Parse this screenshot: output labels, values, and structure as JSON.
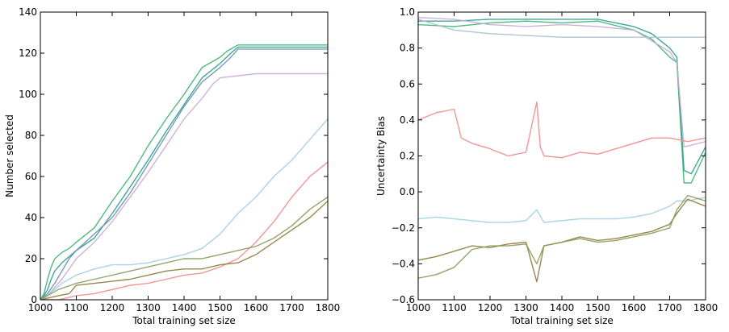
{
  "chart_data": [
    {
      "type": "line",
      "xlabel": "Total training set size",
      "ylabel": "Number selected",
      "xlim": [
        1000,
        1800
      ],
      "ylim": [
        0,
        140
      ],
      "xticks": [
        1000,
        1100,
        1200,
        1300,
        1400,
        1500,
        1600,
        1700,
        1800
      ],
      "yticks": [
        0,
        20,
        40,
        60,
        80,
        100,
        120,
        140
      ],
      "grid": false,
      "series": [
        {
          "color": "#3cb26e",
          "x": [
            1000,
            1010,
            1020,
            1030,
            1040,
            1060,
            1080,
            1100,
            1150,
            1200,
            1250,
            1300,
            1350,
            1400,
            1450,
            1500,
            1520,
            1540,
            1550,
            1600,
            1700,
            1800
          ],
          "y": [
            0,
            3,
            10,
            16,
            20,
            23,
            25,
            28,
            35,
            48,
            60,
            75,
            88,
            100,
            113,
            118,
            121,
            123,
            124,
            124,
            124,
            124
          ]
        },
        {
          "color": "#2a9d8f",
          "x": [
            1000,
            1010,
            1020,
            1030,
            1040,
            1060,
            1080,
            1100,
            1150,
            1200,
            1250,
            1300,
            1350,
            1400,
            1450,
            1500,
            1530,
            1550,
            1600,
            1700,
            1800
          ],
          "y": [
            0,
            2,
            5,
            10,
            14,
            18,
            21,
            24,
            30,
            42,
            55,
            68,
            82,
            95,
            108,
            115,
            120,
            123,
            123,
            123,
            123
          ]
        },
        {
          "color": "#6b8fb0",
          "x": [
            1000,
            1020,
            1040,
            1060,
            1080,
            1100,
            1150,
            1200,
            1250,
            1300,
            1350,
            1400,
            1450,
            1500,
            1530,
            1550,
            1600,
            1700,
            1800
          ],
          "y": [
            0,
            3,
            8,
            14,
            20,
            24,
            32,
            40,
            52,
            66,
            80,
            94,
            106,
            113,
            118,
            122,
            122,
            122,
            122
          ]
        },
        {
          "color": "#c9a8d6",
          "x": [
            1000,
            1020,
            1040,
            1060,
            1080,
            1100,
            1150,
            1200,
            1250,
            1300,
            1350,
            1400,
            1450,
            1480,
            1500,
            1600,
            1700,
            1800
          ],
          "y": [
            0,
            2,
            6,
            10,
            15,
            20,
            28,
            38,
            50,
            62,
            75,
            88,
            98,
            105,
            108,
            110,
            110,
            110
          ]
        },
        {
          "color": "#9ecfe0",
          "x": [
            1000,
            1020,
            1040,
            1060,
            1080,
            1100,
            1150,
            1200,
            1250,
            1300,
            1350,
            1400,
            1450,
            1500,
            1550,
            1600,
            1650,
            1700,
            1750,
            1800
          ],
          "y": [
            0,
            2,
            5,
            8,
            10,
            12,
            15,
            17,
            17,
            18,
            20,
            22,
            25,
            32,
            42,
            50,
            60,
            68,
            78,
            88
          ]
        },
        {
          "color": "#f08a8a",
          "x": [
            1000,
            1050,
            1100,
            1150,
            1200,
            1250,
            1300,
            1350,
            1400,
            1450,
            1500,
            1550,
            1600,
            1650,
            1700,
            1750,
            1800
          ],
          "y": [
            0,
            0,
            2,
            3,
            5,
            7,
            8,
            10,
            12,
            13,
            16,
            20,
            28,
            38,
            50,
            60,
            67
          ]
        },
        {
          "color": "#8c7a3c",
          "x": [
            1000,
            1050,
            1080,
            1100,
            1150,
            1200,
            1250,
            1300,
            1350,
            1400,
            1450,
            1500,
            1550,
            1600,
            1650,
            1700,
            1750,
            1800
          ],
          "y": [
            0,
            2,
            3,
            7,
            8,
            9,
            10,
            12,
            14,
            15,
            15,
            17,
            18,
            22,
            28,
            34,
            40,
            48
          ]
        },
        {
          "color": "#8a9a5b",
          "x": [
            1000,
            1050,
            1100,
            1150,
            1200,
            1250,
            1300,
            1350,
            1400,
            1450,
            1500,
            1550,
            1600,
            1650,
            1700,
            1750,
            1800
          ],
          "y": [
            0,
            5,
            8,
            10,
            12,
            14,
            16,
            18,
            20,
            20,
            22,
            24,
            26,
            30,
            36,
            44,
            50
          ]
        }
      ]
    },
    {
      "type": "line",
      "xlabel": "Total training set size",
      "ylabel": "Uncertainty Bias",
      "xlim": [
        1000,
        1800
      ],
      "ylim": [
        -0.6,
        1.0
      ],
      "xticks": [
        1000,
        1100,
        1200,
        1300,
        1400,
        1500,
        1600,
        1700,
        1800
      ],
      "yticks": [
        -0.6,
        -0.4,
        -0.2,
        0.0,
        0.2,
        0.4,
        0.6,
        0.8,
        1.0
      ],
      "grid": false,
      "series": [
        {
          "color": "#3cb26e",
          "x": [
            1000,
            1100,
            1200,
            1300,
            1400,
            1500,
            1600,
            1650,
            1700,
            1720,
            1740,
            1760,
            1800
          ],
          "y": [
            0.93,
            0.92,
            0.94,
            0.95,
            0.94,
            0.95,
            0.9,
            0.85,
            0.75,
            0.72,
            0.05,
            0.05,
            0.22
          ]
        },
        {
          "color": "#2a9d8f",
          "x": [
            1000,
            1100,
            1200,
            1300,
            1400,
            1500,
            1600,
            1650,
            1700,
            1720,
            1740,
            1760,
            1800
          ],
          "y": [
            0.95,
            0.95,
            0.96,
            0.96,
            0.96,
            0.96,
            0.92,
            0.88,
            0.8,
            0.75,
            0.12,
            0.1,
            0.25
          ]
        },
        {
          "color": "#c9a8d6",
          "x": [
            1000,
            1100,
            1200,
            1300,
            1400,
            1500,
            1600,
            1650,
            1700,
            1720,
            1740,
            1800
          ],
          "y": [
            0.97,
            0.96,
            0.93,
            0.92,
            0.93,
            0.92,
            0.9,
            0.84,
            0.78,
            0.72,
            0.25,
            0.28
          ]
        },
        {
          "color": "#a7c0d0",
          "x": [
            1000,
            1100,
            1200,
            1300,
            1400,
            1500,
            1600,
            1700,
            1730,
            1800
          ],
          "y": [
            0.96,
            0.9,
            0.88,
            0.87,
            0.86,
            0.86,
            0.86,
            0.86,
            0.86,
            0.86
          ]
        },
        {
          "color": "#f08a8a",
          "x": [
            1000,
            1050,
            1100,
            1120,
            1150,
            1200,
            1250,
            1300,
            1330,
            1340,
            1350,
            1400,
            1450,
            1500,
            1550,
            1600,
            1650,
            1700,
            1750,
            1800
          ],
          "y": [
            0.4,
            0.44,
            0.46,
            0.3,
            0.27,
            0.24,
            0.2,
            0.22,
            0.5,
            0.25,
            0.2,
            0.19,
            0.22,
            0.21,
            0.24,
            0.27,
            0.3,
            0.3,
            0.28,
            0.3
          ]
        },
        {
          "color": "#9ecfe0",
          "x": [
            1000,
            1050,
            1100,
            1150,
            1200,
            1250,
            1300,
            1330,
            1350,
            1400,
            1450,
            1500,
            1550,
            1600,
            1650,
            1700,
            1720,
            1750,
            1800
          ],
          "y": [
            -0.15,
            -0.14,
            -0.15,
            -0.16,
            -0.17,
            -0.17,
            -0.16,
            -0.1,
            -0.17,
            -0.16,
            -0.15,
            -0.15,
            -0.15,
            -0.14,
            -0.12,
            -0.08,
            -0.05,
            -0.05,
            -0.03
          ]
        },
        {
          "color": "#8c7a3c",
          "x": [
            1000,
            1050,
            1100,
            1150,
            1200,
            1250,
            1300,
            1330,
            1350,
            1400,
            1450,
            1500,
            1550,
            1600,
            1650,
            1700,
            1720,
            1750,
            1800
          ],
          "y": [
            -0.38,
            -0.36,
            -0.33,
            -0.3,
            -0.31,
            -0.29,
            -0.28,
            -0.5,
            -0.3,
            -0.28,
            -0.25,
            -0.27,
            -0.26,
            -0.24,
            -0.22,
            -0.18,
            -0.12,
            -0.04,
            -0.08
          ]
        },
        {
          "color": "#8a9a5b",
          "x": [
            1000,
            1050,
            1100,
            1150,
            1200,
            1250,
            1300,
            1330,
            1350,
            1400,
            1450,
            1500,
            1550,
            1600,
            1650,
            1700,
            1720,
            1750,
            1800
          ],
          "y": [
            -0.48,
            -0.46,
            -0.42,
            -0.32,
            -0.3,
            -0.3,
            -0.29,
            -0.4,
            -0.3,
            -0.28,
            -0.26,
            -0.28,
            -0.27,
            -0.25,
            -0.23,
            -0.2,
            -0.1,
            -0.02,
            -0.05
          ]
        }
      ]
    }
  ]
}
